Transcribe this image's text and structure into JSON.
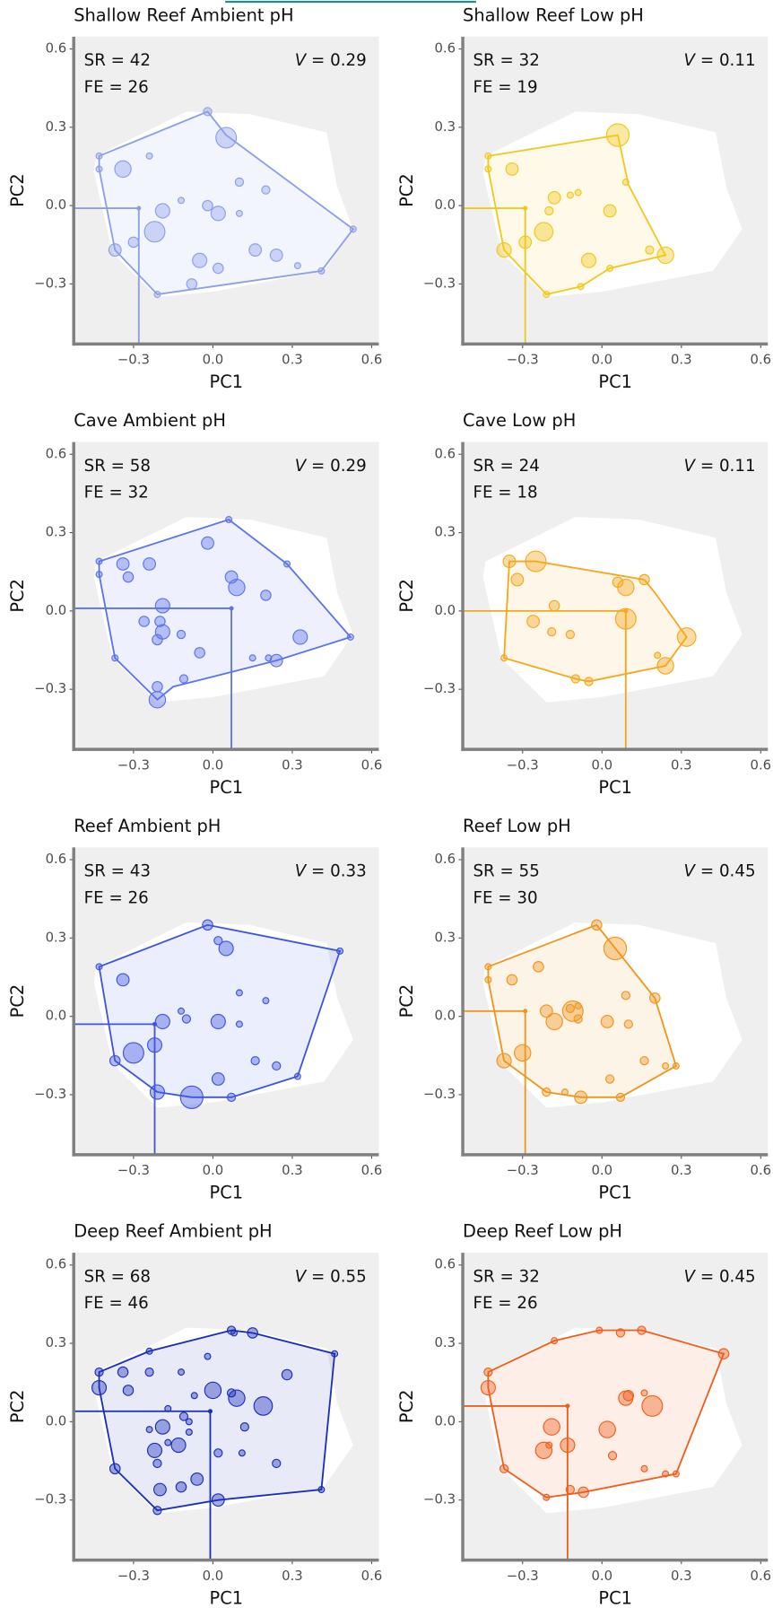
{
  "chart_data": [
    {
      "type": "scatter",
      "title": "Shallow Reef Ambient pH",
      "color": "#8c9ee8",
      "annotations": [
        "SR = 42",
        "FE = 26",
        "V = 0.29"
      ],
      "x_label": "PC1",
      "y_label": "PC2",
      "xlim": [
        -0.526,
        0.627
      ],
      "ylim": [
        -0.53,
        0.647
      ],
      "xticks": [
        {
          "value": -0.3,
          "label": "−0.3"
        },
        {
          "value": 0,
          "label": "0.0"
        },
        {
          "value": 0.3,
          "label": "0.3"
        },
        {
          "value": 0.6,
          "label": "0.6"
        }
      ],
      "yticks": [
        {
          "value": -0.3,
          "label": "−0.3"
        },
        {
          "value": 0,
          "label": "0.0"
        },
        {
          "value": 0.3,
          "label": "0.3"
        },
        {
          "value": 0.6,
          "label": "0.6"
        }
      ],
      "x": [
        0.05,
        -0.34,
        -0.43,
        -0.43,
        -0.24,
        0.1,
        0.2,
        -0.12,
        -0.19,
        0.02,
        -0.02,
        0.1,
        -0.22,
        -0.3,
        -0.37,
        -0.05,
        0.02,
        0.16,
        0.24,
        0.32,
        -0.08,
        -0.21,
        0.41,
        0.53,
        -0.02
      ],
      "y": [
        0.26,
        0.14,
        0.19,
        0.14,
        0.19,
        0.09,
        0.06,
        0.02,
        -0.02,
        -0.03,
        0.0,
        -0.03,
        -0.1,
        -0.14,
        -0.17,
        -0.21,
        -0.24,
        -0.17,
        -0.19,
        -0.23,
        -0.3,
        -0.34,
        -0.25,
        -0.09,
        0.36
      ],
      "sizes": [
        10,
        8,
        3,
        3,
        3,
        4,
        4,
        3,
        7,
        7,
        5,
        3,
        10,
        5,
        6,
        7,
        5,
        6,
        6,
        3,
        5,
        3,
        3,
        3,
        4
      ],
      "hull_x": [
        -0.43,
        -0.02,
        0.05,
        0.53,
        0.41,
        -0.21,
        -0.37,
        -0.43
      ],
      "hull_y": [
        0.19,
        0.36,
        0.27,
        -0.09,
        -0.25,
        -0.34,
        -0.17,
        0.14
      ],
      "centroid_x": -0.28,
      "centroid_y": -0.01
    },
    {
      "type": "scatter",
      "title": "Shallow Reef Low pH",
      "color": "#f2c81c",
      "annotations": [
        "SR = 32",
        "FE = 19",
        "V = 0.11"
      ],
      "x_label": "PC1",
      "y_label": "PC2",
      "xlim": [
        -0.526,
        0.627
      ],
      "ylim": [
        -0.53,
        0.647
      ],
      "xticks": [
        {
          "value": -0.3,
          "label": "−0.3"
        },
        {
          "value": 0,
          "label": "0.0"
        },
        {
          "value": 0.3,
          "label": "0.3"
        },
        {
          "value": 0.6,
          "label": "0.6"
        }
      ],
      "yticks": [
        {
          "value": -0.3,
          "label": "−0.3"
        },
        {
          "value": 0,
          "label": "0.0"
        },
        {
          "value": 0.3,
          "label": "0.3"
        },
        {
          "value": 0.6,
          "label": "0.6"
        }
      ],
      "x": [
        0.06,
        -0.34,
        -0.43,
        -0.43,
        -0.18,
        -0.12,
        -0.09,
        0.09,
        0.03,
        -0.2,
        -0.22,
        -0.29,
        -0.37,
        -0.05,
        0.03,
        -0.08,
        -0.21,
        0.18,
        0.24
      ],
      "y": [
        0.27,
        0.14,
        0.19,
        0.14,
        0.03,
        0.04,
        0.05,
        0.09,
        -0.02,
        -0.02,
        -0.1,
        -0.14,
        -0.17,
        -0.21,
        -0.24,
        -0.31,
        -0.34,
        -0.17,
        -0.19
      ],
      "sizes": [
        11,
        6,
        3,
        3,
        6,
        3,
        3,
        3,
        6,
        4,
        9,
        6,
        7,
        7,
        3,
        3,
        3,
        4,
        8
      ],
      "hull_x": [
        -0.43,
        0.06,
        0.1,
        0.24,
        0.03,
        -0.08,
        -0.21,
        -0.37,
        -0.43
      ],
      "hull_y": [
        0.19,
        0.27,
        0.08,
        -0.19,
        -0.24,
        -0.31,
        -0.34,
        -0.17,
        0.14
      ],
      "centroid_x": -0.29,
      "centroid_y": -0.01
    },
    {
      "type": "scatter",
      "title": "Cave Ambient pH",
      "color": "#5b74ea",
      "annotations": [
        "SR = 58",
        "FE = 32",
        "V = 0.29"
      ],
      "x_label": "PC1",
      "y_label": "PC2",
      "xlim": [
        -0.526,
        0.627
      ],
      "ylim": [
        -0.53,
        0.647
      ],
      "xticks": [
        {
          "value": -0.3,
          "label": "−0.3"
        },
        {
          "value": 0,
          "label": "0.0"
        },
        {
          "value": 0.3,
          "label": "0.3"
        },
        {
          "value": 0.6,
          "label": "0.6"
        }
      ],
      "yticks": [
        {
          "value": -0.3,
          "label": "−0.3"
        },
        {
          "value": 0,
          "label": "0.0"
        },
        {
          "value": 0.3,
          "label": "0.3"
        },
        {
          "value": 0.6,
          "label": "0.6"
        }
      ],
      "x": [
        0.06,
        -0.02,
        0.09,
        0.07,
        0.2,
        -0.34,
        -0.24,
        -0.32,
        -0.19,
        -0.26,
        -0.2,
        -0.19,
        -0.21,
        -0.12,
        -0.05,
        -0.11,
        -0.21,
        -0.21,
        0.15,
        0.21,
        0.24,
        0.33,
        0.52,
        0.28,
        -0.43,
        -0.43,
        -0.37
      ],
      "y": [
        0.35,
        0.26,
        0.09,
        0.13,
        0.06,
        0.18,
        0.18,
        0.13,
        0.02,
        -0.04,
        -0.04,
        -0.08,
        -0.11,
        -0.09,
        -0.16,
        -0.26,
        -0.29,
        -0.34,
        -0.18,
        -0.18,
        -0.19,
        -0.1,
        -0.1,
        0.18,
        0.19,
        0.14,
        -0.18
      ],
      "sizes": [
        3,
        6,
        8,
        6,
        5,
        6,
        6,
        5,
        7,
        5,
        5,
        7,
        5,
        4,
        5,
        4,
        5,
        8,
        3,
        3,
        6,
        7,
        3,
        3,
        3,
        3,
        3
      ],
      "hull_x": [
        -0.43,
        0.06,
        0.28,
        0.52,
        0.24,
        -0.15,
        -0.21,
        -0.37,
        -0.43
      ],
      "hull_y": [
        0.19,
        0.35,
        0.18,
        -0.1,
        -0.19,
        -0.29,
        -0.34,
        -0.18,
        0.14
      ],
      "centroid_x": 0.07,
      "centroid_y": 0.01
    },
    {
      "type": "scatter",
      "title": "Cave Low pH",
      "color": "#f5a81c",
      "annotations": [
        "SR = 24",
        "FE = 18",
        "V = 0.11"
      ],
      "x_label": "PC1",
      "y_label": "PC2",
      "xlim": [
        -0.526,
        0.627
      ],
      "ylim": [
        -0.53,
        0.647
      ],
      "xticks": [
        {
          "value": -0.3,
          "label": "−0.3"
        },
        {
          "value": 0,
          "label": "0.0"
        },
        {
          "value": 0.3,
          "label": "0.3"
        },
        {
          "value": 0.6,
          "label": "0.6"
        }
      ],
      "yticks": [
        {
          "value": -0.3,
          "label": "−0.3"
        },
        {
          "value": 0,
          "label": "0.0"
        },
        {
          "value": 0.3,
          "label": "0.3"
        },
        {
          "value": 0.6,
          "label": "0.6"
        }
      ],
      "x": [
        -0.35,
        -0.25,
        -0.32,
        -0.18,
        -0.26,
        -0.19,
        -0.12,
        0.09,
        0.09,
        0.06,
        0.16,
        0.32,
        0.24,
        0.21,
        -0.05,
        -0.1,
        -0.37
      ],
      "y": [
        0.19,
        0.19,
        0.12,
        0.02,
        -0.04,
        -0.08,
        -0.09,
        -0.03,
        0.09,
        0.11,
        0.12,
        -0.1,
        -0.21,
        -0.17,
        -0.27,
        -0.26,
        -0.18
      ],
      "sizes": [
        6,
        10,
        6,
        5,
        6,
        4,
        4,
        10,
        8,
        5,
        5,
        9,
        8,
        3,
        4,
        4,
        3
      ],
      "hull_x": [
        -0.35,
        -0.25,
        0.16,
        0.2,
        0.32,
        0.24,
        -0.05,
        -0.1,
        -0.37
      ],
      "hull_y": [
        0.19,
        0.19,
        0.12,
        0.07,
        -0.1,
        -0.21,
        -0.27,
        -0.26,
        -0.18
      ],
      "centroid_x": 0.09,
      "centroid_y": 0.0
    },
    {
      "type": "scatter",
      "title": "Reef Ambient pH",
      "color": "#3e55e0",
      "annotations": [
        "SR = 43",
        "FE = 26",
        "V = 0.33"
      ],
      "x_label": "PC1",
      "y_label": "PC2",
      "xlim": [
        -0.526,
        0.627
      ],
      "ylim": [
        -0.53,
        0.647
      ],
      "xticks": [
        {
          "value": -0.3,
          "label": "−0.3"
        },
        {
          "value": 0,
          "label": "0.0"
        },
        {
          "value": 0.3,
          "label": "0.3"
        },
        {
          "value": 0.6,
          "label": "0.6"
        }
      ],
      "yticks": [
        {
          "value": -0.3,
          "label": "−0.3"
        },
        {
          "value": 0,
          "label": "0.0"
        },
        {
          "value": 0.3,
          "label": "0.3"
        },
        {
          "value": 0.6,
          "label": "0.6"
        }
      ],
      "x": [
        -0.02,
        0.02,
        0.05,
        -0.34,
        -0.43,
        0.48,
        0.1,
        0.2,
        -0.12,
        -0.1,
        -0.19,
        0.02,
        0.1,
        -0.22,
        -0.3,
        -0.37,
        0.16,
        0.24,
        0.32,
        -0.21,
        -0.08,
        0.02,
        0.07
      ],
      "y": [
        0.35,
        0.29,
        0.26,
        0.14,
        0.19,
        0.25,
        0.09,
        0.06,
        0.02,
        -0.01,
        -0.02,
        -0.02,
        -0.03,
        -0.11,
        -0.14,
        -0.17,
        -0.17,
        -0.19,
        -0.23,
        -0.29,
        -0.31,
        -0.24,
        -0.31
      ],
      "sizes": [
        5,
        4,
        7,
        6,
        3,
        3,
        3,
        3,
        3,
        4,
        7,
        7,
        3,
        7,
        10,
        5,
        4,
        4,
        3,
        7,
        11,
        6,
        4
      ],
      "hull_x": [
        -0.43,
        -0.02,
        0.48,
        0.32,
        0.07,
        -0.08,
        -0.21,
        -0.37
      ],
      "hull_y": [
        0.19,
        0.35,
        0.25,
        -0.23,
        -0.31,
        -0.31,
        -0.29,
        -0.17
      ],
      "centroid_x": -0.22,
      "centroid_y": -0.03
    },
    {
      "type": "scatter",
      "title": "Reef Low pH",
      "color": "#f0961c",
      "annotations": [
        "SR = 55",
        "FE = 30",
        "V = 0.45"
      ],
      "x_label": "PC1",
      "y_label": "PC2",
      "xlim": [
        -0.526,
        0.627
      ],
      "ylim": [
        -0.53,
        0.647
      ],
      "xticks": [
        {
          "value": -0.3,
          "label": "−0.3"
        },
        {
          "value": 0,
          "label": "0.0"
        },
        {
          "value": 0.3,
          "label": "0.3"
        },
        {
          "value": 0.6,
          "label": "0.6"
        }
      ],
      "yticks": [
        {
          "value": -0.3,
          "label": "−0.3"
        },
        {
          "value": 0,
          "label": "0.0"
        },
        {
          "value": 0.3,
          "label": "0.3"
        },
        {
          "value": 0.6,
          "label": "0.6"
        }
      ],
      "x": [
        -0.02,
        0.05,
        -0.43,
        -0.43,
        -0.34,
        -0.24,
        0.09,
        0.2,
        -0.12,
        -0.09,
        -0.21,
        -0.11,
        -0.18,
        -0.09,
        0.02,
        0.1,
        -0.3,
        -0.37,
        0.16,
        0.24,
        0.28,
        0.03,
        0.07,
        -0.08,
        -0.21,
        -0.14
      ],
      "y": [
        0.35,
        0.26,
        0.19,
        0.14,
        0.14,
        0.19,
        0.08,
        0.07,
        0.03,
        0.04,
        0.02,
        0.02,
        -0.02,
        -0.01,
        -0.02,
        -0.03,
        -0.14,
        -0.17,
        -0.17,
        -0.19,
        -0.19,
        -0.24,
        -0.31,
        -0.31,
        -0.29,
        -0.29
      ],
      "sizes": [
        5,
        11,
        3,
        3,
        5,
        5,
        4,
        5,
        4,
        3,
        6,
        10,
        8,
        4,
        6,
        4,
        8,
        7,
        4,
        3,
        3,
        4,
        4,
        6,
        4,
        3
      ],
      "hull_x": [
        -0.43,
        -0.02,
        0.2,
        0.28,
        0.07,
        -0.08,
        -0.21,
        -0.37,
        -0.43
      ],
      "hull_y": [
        0.19,
        0.35,
        0.07,
        -0.19,
        -0.31,
        -0.31,
        -0.29,
        -0.17,
        0.14
      ],
      "centroid_x": -0.29,
      "centroid_y": 0.02
    },
    {
      "type": "scatter",
      "title": "Deep Reef Ambient pH",
      "color": "#1b2fb8",
      "annotations": [
        "SR = 68",
        "FE = 46",
        "V = 0.55"
      ],
      "x_label": "PC1",
      "y_label": "PC2",
      "xlim": [
        -0.526,
        0.627
      ],
      "ylim": [
        -0.53,
        0.647
      ],
      "xticks": [
        {
          "value": -0.3,
          "label": "−0.3"
        },
        {
          "value": 0,
          "label": "0.0"
        },
        {
          "value": 0.3,
          "label": "0.3"
        },
        {
          "value": 0.6,
          "label": "0.6"
        }
      ],
      "yticks": [
        {
          "value": -0.3,
          "label": "−0.3"
        },
        {
          "value": 0,
          "label": "0.0"
        },
        {
          "value": 0.3,
          "label": "0.3"
        },
        {
          "value": 0.6,
          "label": "0.6"
        }
      ],
      "x": [
        -0.43,
        -0.43,
        -0.34,
        -0.24,
        -0.24,
        -0.32,
        -0.12,
        -0.02,
        0.07,
        0.08,
        0.15,
        0.28,
        0.0,
        0.09,
        0.19,
        -0.07,
        0.07,
        -0.11,
        -0.09,
        -0.19,
        -0.09,
        0.12,
        -0.24,
        -0.22,
        -0.13,
        -0.21,
        0.02,
        0.11,
        0.24,
        -0.37,
        -0.06,
        -0.12,
        -0.2,
        0.02,
        -0.21,
        0.41,
        0.46,
        -0.17,
        -0.17
      ],
      "y": [
        0.19,
        0.13,
        0.19,
        0.27,
        0.19,
        0.12,
        0.19,
        0.25,
        0.35,
        0.34,
        0.34,
        0.18,
        0.12,
        0.09,
        0.06,
        0.1,
        0.11,
        0.02,
        0.0,
        -0.02,
        -0.04,
        -0.02,
        -0.03,
        -0.11,
        -0.09,
        -0.16,
        -0.12,
        -0.12,
        -0.16,
        -0.18,
        -0.22,
        -0.25,
        -0.26,
        -0.3,
        -0.34,
        -0.26,
        0.26,
        0.05,
        -0.08
      ],
      "sizes": [
        4,
        7,
        5,
        3,
        4,
        5,
        3,
        3,
        4,
        3,
        5,
        5,
        8,
        8,
        9,
        3,
        4,
        4,
        3,
        7,
        3,
        4,
        3,
        7,
        7,
        4,
        4,
        3,
        4,
        5,
        6,
        5,
        6,
        6,
        4,
        3,
        3,
        3,
        3
      ],
      "hull_x": [
        -0.43,
        -0.24,
        0.07,
        0.15,
        0.46,
        0.41,
        0.02,
        -0.21,
        -0.37,
        -0.43
      ],
      "hull_y": [
        0.19,
        0.27,
        0.35,
        0.34,
        0.26,
        -0.26,
        -0.3,
        -0.34,
        -0.18,
        0.13
      ],
      "centroid_x": -0.01,
      "centroid_y": 0.04
    },
    {
      "type": "scatter",
      "title": "Deep Reef Low pH",
      "color": "#ef5f1c",
      "annotations": [
        "SR = 32",
        "FE = 26",
        "V = 0.45"
      ],
      "x_label": "PC1",
      "y_label": "PC2",
      "xlim": [
        -0.526,
        0.627
      ],
      "ylim": [
        -0.53,
        0.647
      ],
      "xticks": [
        {
          "value": -0.3,
          "label": "−0.3"
        },
        {
          "value": 0,
          "label": "0.0"
        },
        {
          "value": 0.3,
          "label": "0.3"
        },
        {
          "value": 0.6,
          "label": "0.6"
        }
      ],
      "yticks": [
        {
          "value": -0.3,
          "label": "−0.3"
        },
        {
          "value": 0,
          "label": "0.0"
        },
        {
          "value": 0.3,
          "label": "0.3"
        },
        {
          "value": 0.6,
          "label": "0.6"
        }
      ],
      "x": [
        -0.43,
        -0.43,
        -0.18,
        -0.01,
        0.07,
        0.15,
        0.46,
        0.09,
        0.19,
        0.16,
        -0.19,
        0.02,
        -0.13,
        -0.22,
        -0.2,
        0.04,
        0.16,
        0.24,
        0.28,
        -0.37,
        -0.12,
        -0.07,
        -0.21,
        0.1
      ],
      "y": [
        0.19,
        0.13,
        0.31,
        0.35,
        0.34,
        0.35,
        0.26,
        0.09,
        0.06,
        0.11,
        -0.02,
        -0.03,
        -0.09,
        -0.11,
        -0.09,
        -0.13,
        -0.18,
        -0.2,
        -0.2,
        -0.18,
        -0.26,
        -0.27,
        -0.29,
        0.1
      ],
      "sizes": [
        4,
        7,
        3,
        3,
        4,
        4,
        5,
        7,
        10,
        3,
        8,
        8,
        7,
        8,
        3,
        4,
        3,
        3,
        3,
        4,
        4,
        5,
        3,
        5
      ],
      "hull_x": [
        -0.43,
        -0.18,
        -0.01,
        0.15,
        0.46,
        0.28,
        -0.07,
        -0.21,
        -0.37,
        -0.43
      ],
      "hull_y": [
        0.19,
        0.31,
        0.35,
        0.35,
        0.26,
        -0.2,
        -0.27,
        -0.29,
        -0.18,
        0.13
      ],
      "centroid_x": -0.13,
      "centroid_y": 0.06
    }
  ],
  "reference_hull": {
    "x": [
      -0.44,
      -0.1,
      0.14,
      0.43,
      0.47,
      0.53,
      0.42,
      0.0,
      -0.21,
      -0.38,
      -0.45
    ],
    "y": [
      0.19,
      0.36,
      0.35,
      0.28,
      0.07,
      -0.09,
      -0.25,
      -0.33,
      -0.35,
      -0.18,
      0.13
    ]
  }
}
